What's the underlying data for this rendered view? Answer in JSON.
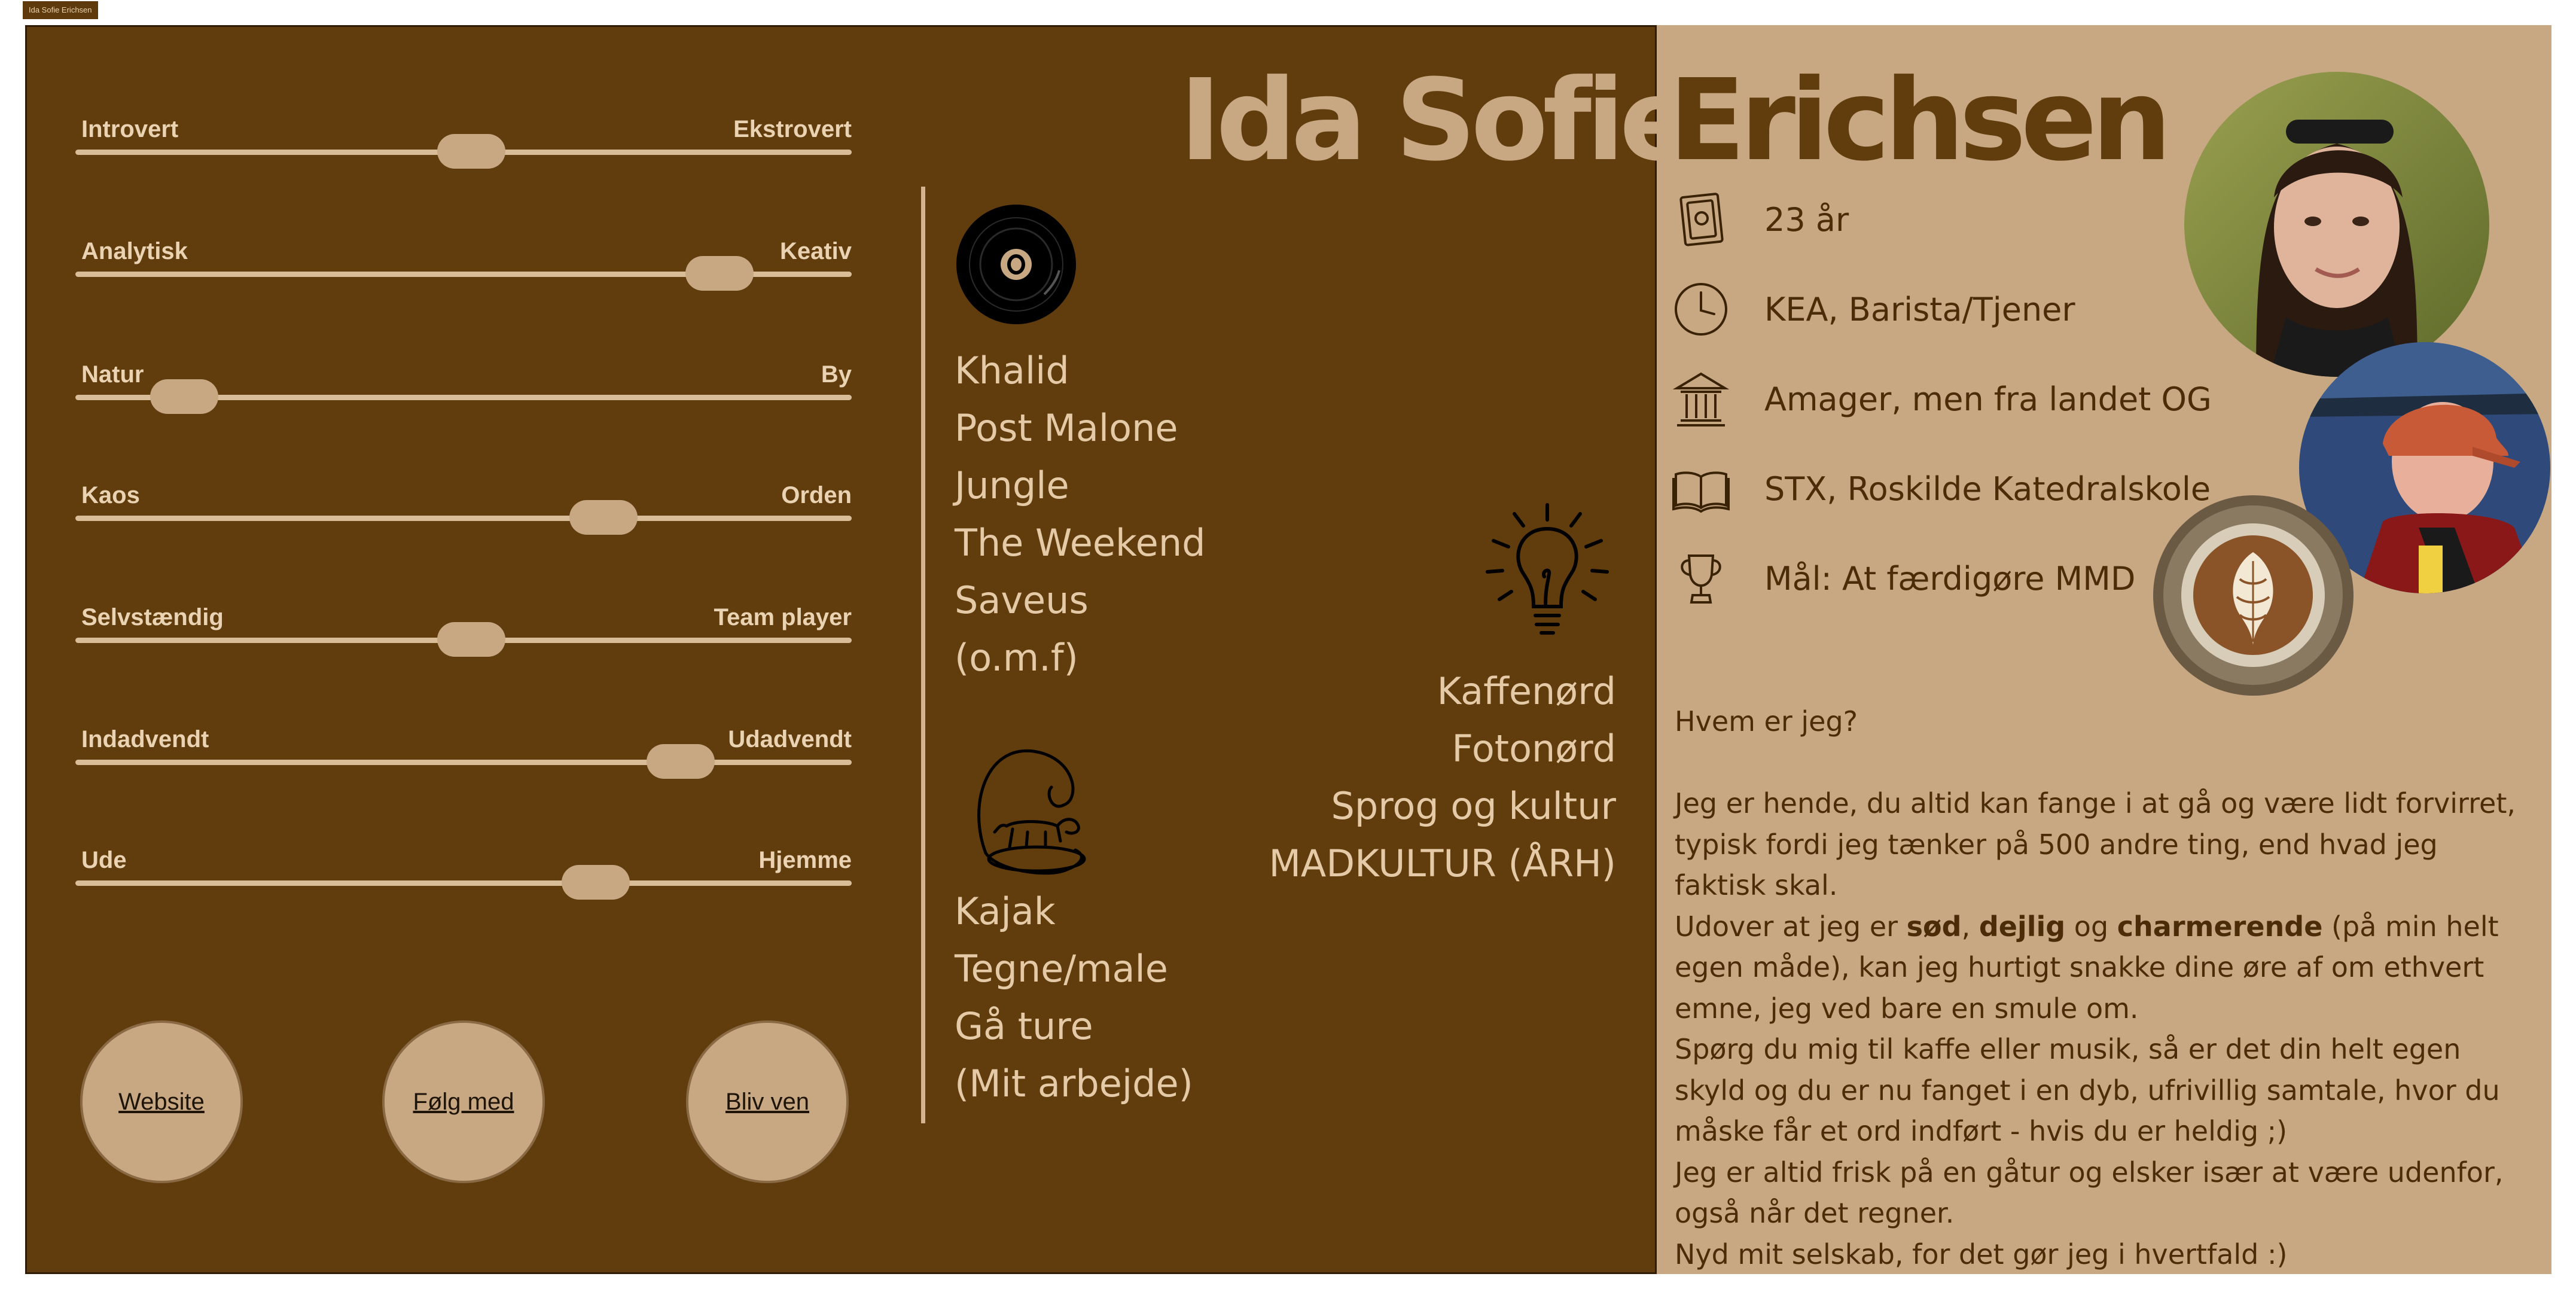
{
  "tab": {
    "label": "Ida Sofie Erichsen"
  },
  "title": {
    "first": "Ida Sofie",
    "last": "Erichsen"
  },
  "sliders": [
    {
      "left": "Introvert",
      "right": "Ekstrovert",
      "value": 0.51
    },
    {
      "left": "Analytisk",
      "right": "Keativ",
      "value": 0.83
    },
    {
      "left": "Natur",
      "right": "By",
      "value": 0.14
    },
    {
      "left": "Kaos",
      "right": "Orden",
      "value": 0.68
    },
    {
      "left": "Selvstændig",
      "right": "Team player",
      "value": 0.51
    },
    {
      "left": "Indadvendt",
      "right": "Udadvendt",
      "value": 0.78
    },
    {
      "left": "Ude",
      "right": "Hjemme",
      "value": 0.67
    }
  ],
  "buttons": {
    "website": "Website",
    "follow": "Følg med",
    "friend": "Bliv ven"
  },
  "music": {
    "icon": "vinyl-record-icon",
    "items": [
      "Khalid",
      "Post Malone",
      "Jungle",
      "The Weekend",
      "Saveus",
      "(o.m.f)"
    ]
  },
  "hobbies": {
    "icon": "surfing-dog-icon",
    "items": [
      "Kajak",
      "Tegne/male",
      "Gå ture",
      "(Mit arbejde)"
    ]
  },
  "interests": {
    "icon": "lightbulb-icon",
    "items": [
      "Kaffenørd",
      "Fotonørd",
      "Sprog og kultur",
      "MADKULTUR (ÅRH)"
    ]
  },
  "info": [
    {
      "icon": "id-card-icon",
      "text": "23 år"
    },
    {
      "icon": "clock-icon",
      "text": "KEA, Barista/Tjener"
    },
    {
      "icon": "building-icon",
      "text": "Amager, men fra landet OG"
    },
    {
      "icon": "book-icon",
      "text": "STX, Roskilde Katedralskole"
    },
    {
      "icon": "trophy-icon",
      "text": "Mål: At færdigøre MMD"
    }
  ],
  "bio": {
    "question": "Hvem er jeg?",
    "p1": "Jeg er hende, du altid kan fange i at gå og være lidt forvirret, typisk fordi jeg tænker på 500 andre ting, end hvad jeg faktisk skal.",
    "p2_pre": "Udover at jeg er ",
    "p2_b1": "sød",
    "p2_sep": ", ",
    "p2_b2": "dejlig",
    "p2_and": " og ",
    "p2_b3": "charmerende",
    "p2_post": " (på min helt egen måde), kan jeg hurtigt snakke dine øre af om ethvert emne, jeg ved bare en smule om.",
    "p3": "Spørg du mig til kaffe eller musik, så er det din helt egen skyld og du er nu fanget i en dyb, ufrivillig samtale, hvor du måske får et ord indført - hvis du er heldig ;)",
    "p4": "Jeg er altid frisk på en gåtur og elsker især at være udenfor, også når det regner.",
    "p5": "Nyd mit selskab, for det gør jeg i hvertfald :)"
  },
  "colors": {
    "dark_brown": "#613c0c",
    "tan": "#c7a883",
    "light_text": "#e4caa6",
    "dark_text": "#4a2d08"
  },
  "photos": [
    "portrait-photo",
    "kayak-selfie-photo",
    "latte-art-photo"
  ]
}
